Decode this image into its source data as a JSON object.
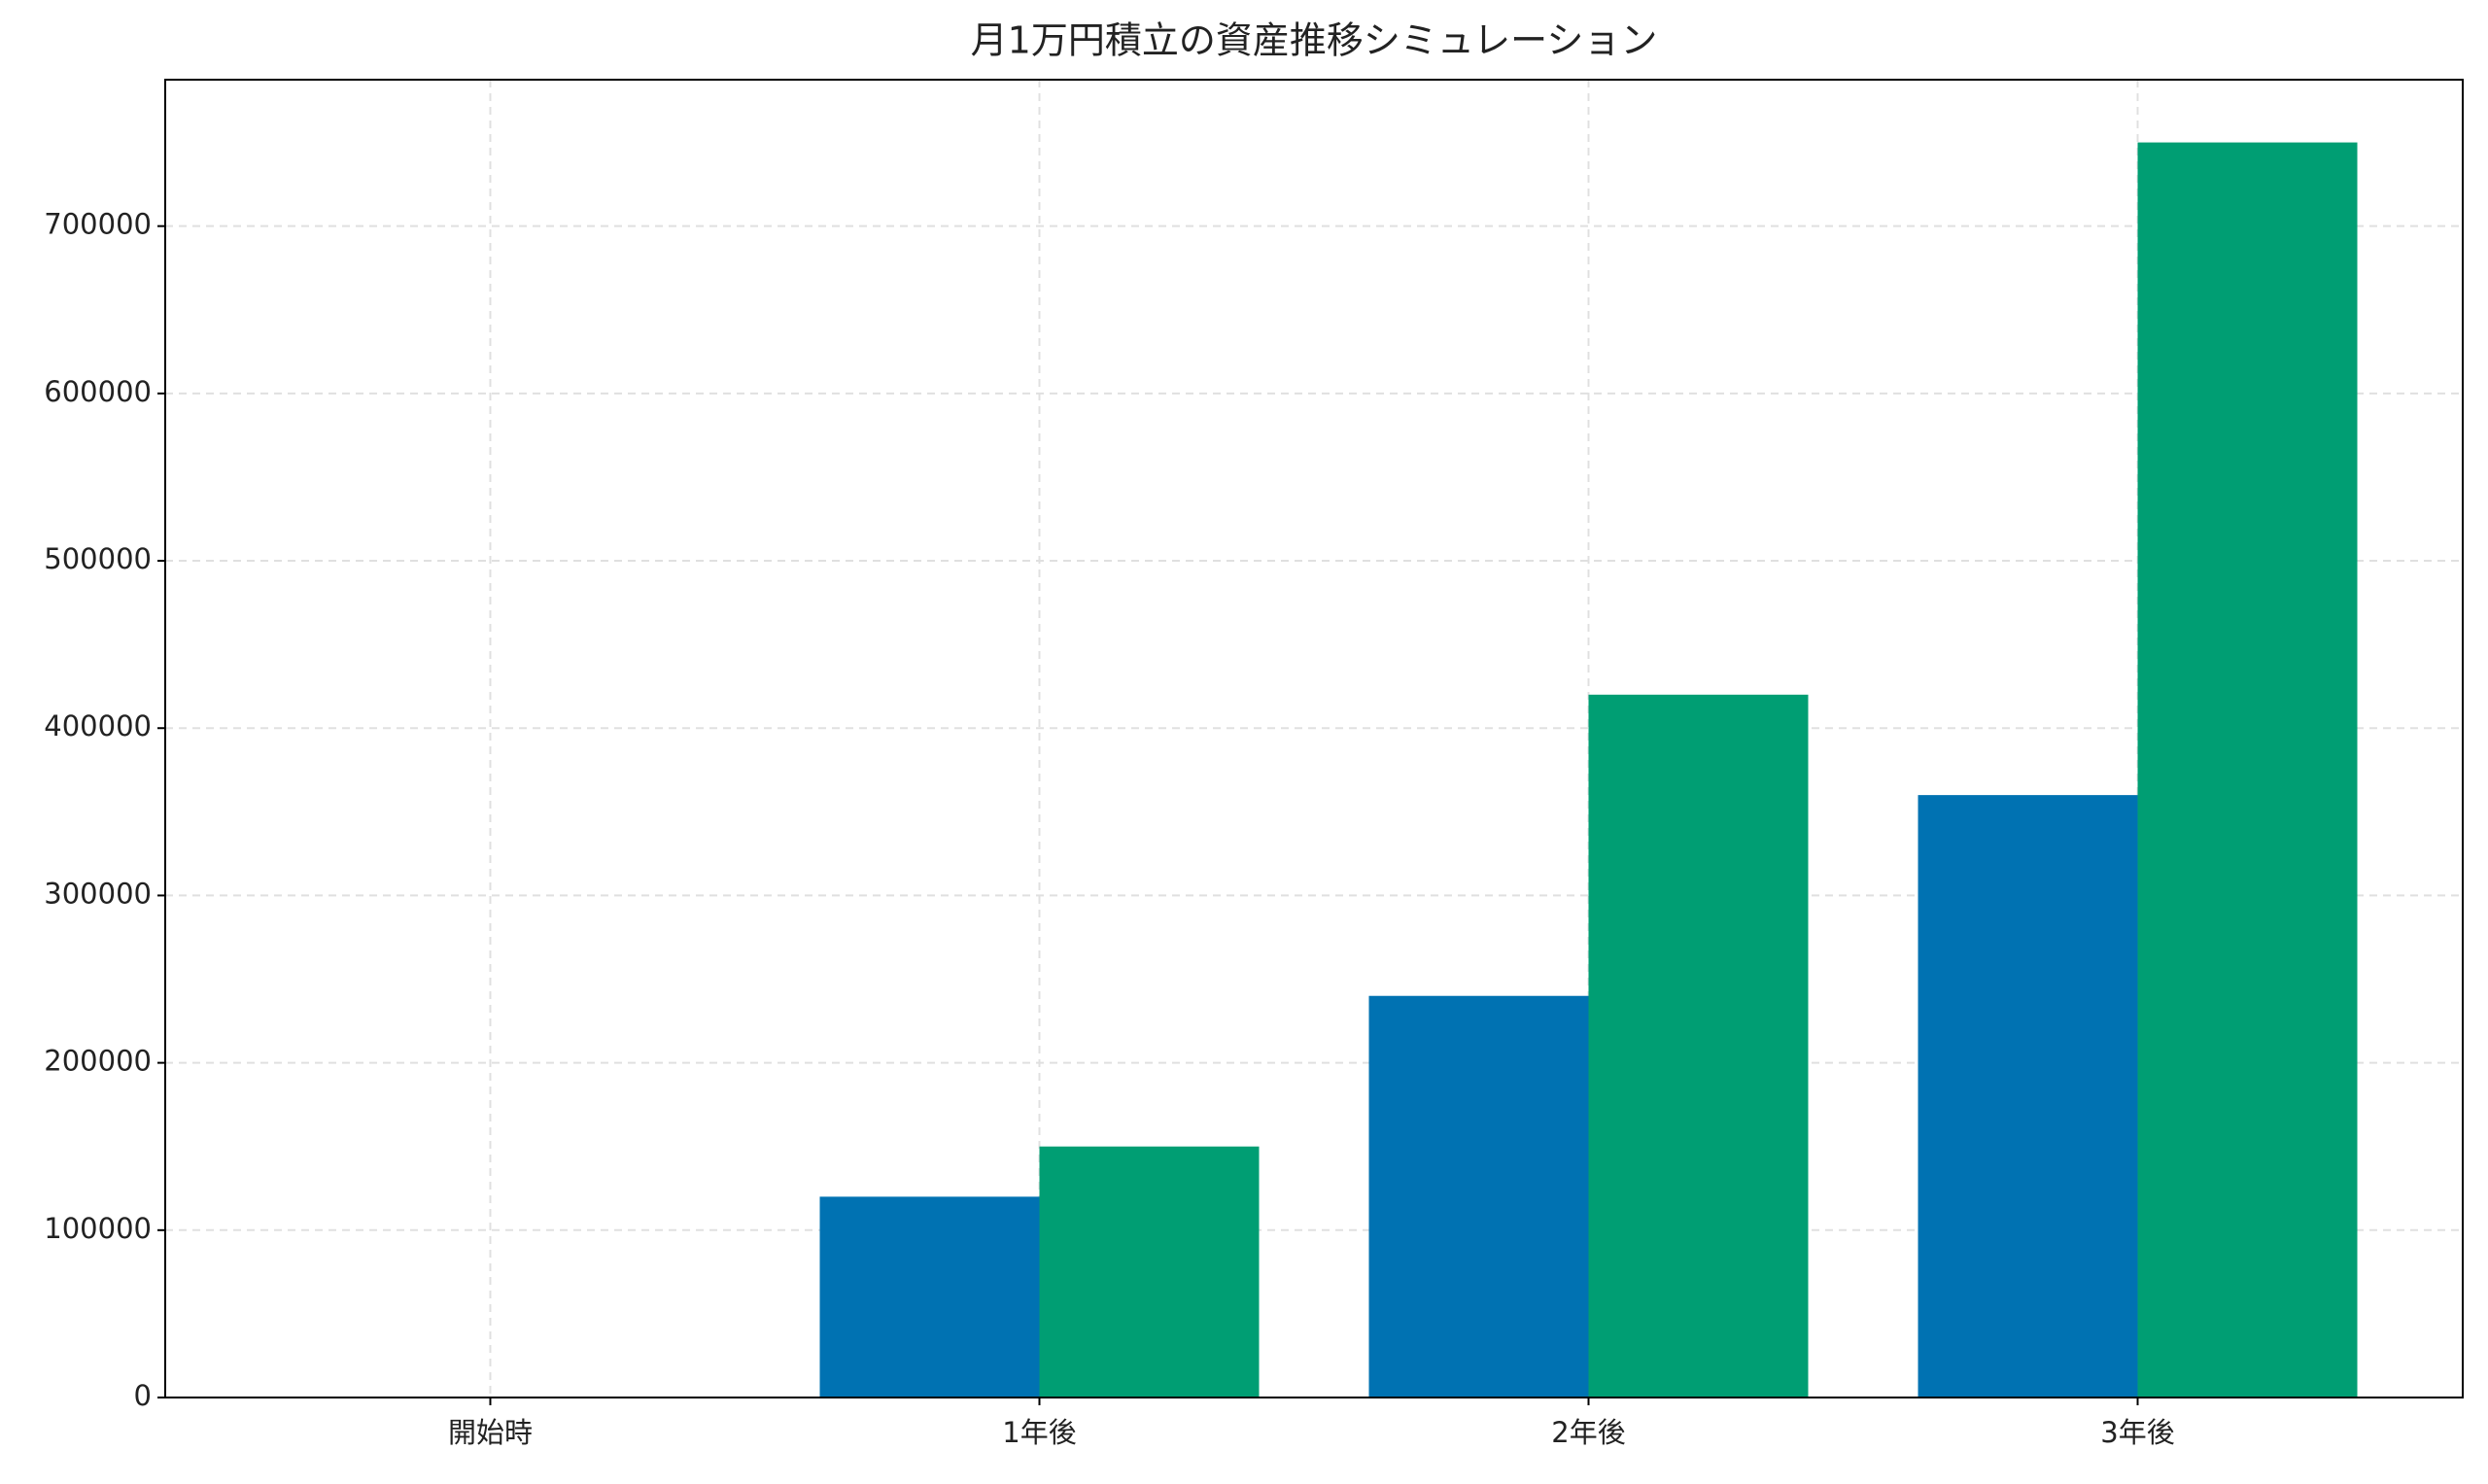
{
  "chart_data": {
    "type": "bar",
    "title": "月1万円積立の資産推移シミュレーション",
    "categories": [
      "開始時",
      "1年後",
      "2年後",
      "3年後"
    ],
    "series": [
      {
        "color": "#0072b2",
        "values": [
          0,
          120000,
          240000,
          360000
        ]
      },
      {
        "color": "#009e73",
        "values": [
          0,
          150000,
          420000,
          750000
        ]
      }
    ],
    "ylim": [
      0,
      787500
    ],
    "yticks": [
      0,
      100000,
      200000,
      300000,
      400000,
      500000,
      600000,
      700000
    ],
    "grid": true
  }
}
